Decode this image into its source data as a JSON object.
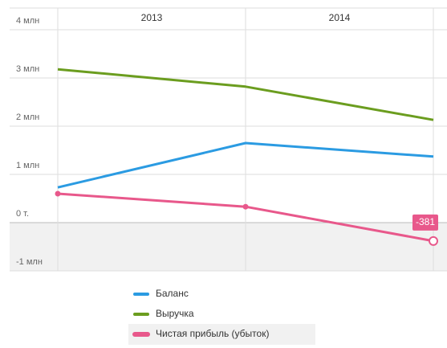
{
  "chart_data": {
    "type": "line",
    "periods": [
      "2013",
      "2014"
    ],
    "categories": [
      null,
      null,
      null
    ],
    "series": [
      {
        "name": "Баланс",
        "color": "#2b9be2",
        "values": [
          730,
          1650,
          1370
        ]
      },
      {
        "name": "Выручка",
        "color": "#6b9d1f",
        "values": [
          3180,
          2820,
          2130
        ]
      },
      {
        "name": "Чистая прибыль (убыток)",
        "color": "#e8588b",
        "values": [
          600,
          330,
          -381
        ],
        "markers": true
      }
    ],
    "ylim": [
      -1000,
      4000
    ],
    "yticks": [
      {
        "value": -1000,
        "label": "-1 млн"
      },
      {
        "value": 0,
        "label": "0 т."
      },
      {
        "value": 1000,
        "label": "1 млн"
      },
      {
        "value": 2000,
        "label": "2 млн"
      },
      {
        "value": 3000,
        "label": "3 млн"
      },
      {
        "value": 4000,
        "label": "4 млн"
      }
    ],
    "grid": true
  }
}
